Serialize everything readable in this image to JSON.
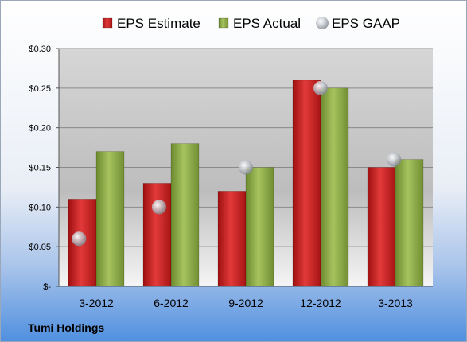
{
  "chart_data": {
    "type": "bar",
    "categories": [
      "3-2012",
      "6-2012",
      "9-2012",
      "12-2012",
      "3-2013"
    ],
    "series": [
      {
        "name": "EPS Estimate",
        "kind": "bar",
        "color": "#cc1f1f",
        "values": [
          0.11,
          0.13,
          0.12,
          0.26,
          0.15
        ]
      },
      {
        "name": "EPS Actual",
        "kind": "bar",
        "color": "#8fb04a",
        "values": [
          0.17,
          0.18,
          0.15,
          0.25,
          0.16
        ]
      },
      {
        "name": "EPS GAAP",
        "kind": "marker",
        "color": "#b8bcc4",
        "values": [
          0.06,
          0.1,
          0.15,
          0.25,
          0.16
        ]
      }
    ],
    "y_ticks": [
      {
        "value": 0.3,
        "label": "$0.30"
      },
      {
        "value": 0.25,
        "label": "$0.25"
      },
      {
        "value": 0.2,
        "label": "$0.20"
      },
      {
        "value": 0.15,
        "label": "$0.15"
      },
      {
        "value": 0.1,
        "label": "$0.10"
      },
      {
        "value": 0.05,
        "label": "$0.05"
      },
      {
        "value": 0.0,
        "label": "$-"
      }
    ],
    "ylim": [
      0,
      0.3
    ],
    "grid": true,
    "legend_position": "top"
  },
  "footer_label": "Tumi Holdings"
}
